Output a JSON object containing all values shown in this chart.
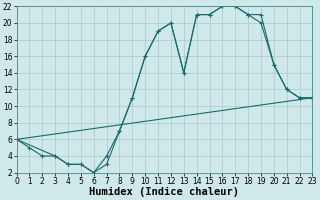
{
  "bg_color": "#cfe8ea",
  "grid_color": "#aac8cc",
  "line_color": "#1a6b6b",
  "xlim": [
    0,
    23
  ],
  "ylim": [
    2,
    22
  ],
  "xticks": [
    0,
    1,
    2,
    3,
    4,
    5,
    6,
    7,
    8,
    9,
    10,
    11,
    12,
    13,
    14,
    15,
    16,
    17,
    18,
    19,
    20,
    21,
    22,
    23
  ],
  "yticks": [
    2,
    4,
    6,
    8,
    10,
    12,
    14,
    16,
    18,
    20,
    22
  ],
  "xlabel": "Humidex (Indice chaleur)",
  "tick_fontsize": 5.5,
  "xlabel_fontsize": 7.5,
  "line1_x": [
    0,
    1,
    2,
    3,
    4,
    5,
    6,
    7,
    8,
    9,
    10,
    11,
    12,
    13,
    14,
    15,
    16,
    17,
    18,
    19,
    20,
    21,
    22,
    23
  ],
  "line1_y": [
    6,
    5,
    4,
    4,
    3,
    3,
    2,
    3,
    7,
    11,
    16,
    19,
    20,
    14,
    21,
    21,
    22,
    22,
    21,
    21,
    15,
    12,
    11,
    11
  ],
  "line2_x": [
    0,
    3,
    4,
    5,
    6,
    7,
    8,
    9,
    10,
    11,
    12,
    13,
    14,
    15,
    16,
    17,
    18,
    19,
    20,
    21,
    22,
    23
  ],
  "line2_y": [
    6,
    4,
    3,
    3,
    2,
    4,
    7,
    11,
    16,
    19,
    20,
    14,
    21,
    21,
    22,
    22,
    21,
    20,
    15,
    12,
    11,
    11
  ],
  "line3_x": [
    0,
    23
  ],
  "line3_y": [
    6,
    11
  ],
  "figsize": [
    3.2,
    2.0
  ],
  "dpi": 100
}
